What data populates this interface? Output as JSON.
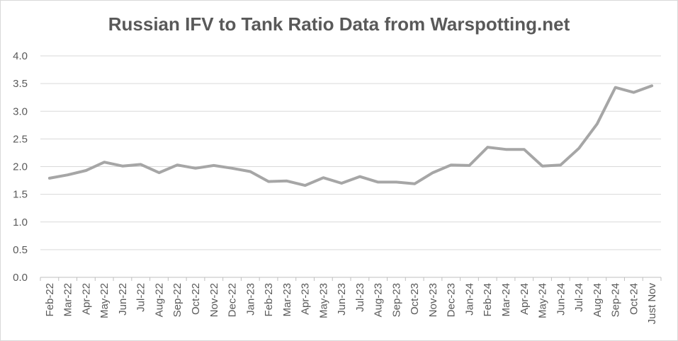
{
  "chart_data": {
    "type": "line",
    "title": "Russian IFV to Tank Ratio Data from Warspotting.net",
    "xlabel": "",
    "ylabel": "",
    "ylim": [
      0,
      4
    ],
    "yticks": [
      "0.0",
      "0.5",
      "1.0",
      "1.5",
      "2.0",
      "2.5",
      "3.0",
      "3.5",
      "4.0"
    ],
    "grid": "horizontal",
    "legend": "none",
    "series_color": "#a6a6a6",
    "categories": [
      "Feb-22",
      "Mar-22",
      "Apr-22",
      "May-22",
      "Jun-22",
      "Jul-22",
      "Aug-22",
      "Sep-22",
      "Oct-22",
      "Nov-22",
      "Dec-22",
      "Jan-23",
      "Feb-23",
      "Mar-23",
      "Apr-23",
      "May-23",
      "Jun-23",
      "Jul-23",
      "Aug-23",
      "Sep-23",
      "Oct-23",
      "Nov-23",
      "Dec-23",
      "Jan-24",
      "Feb-24",
      "Mar-24",
      "Apr-24",
      "May-24",
      "Jun-24",
      "Jul-24",
      "Aug-24",
      "Sep-24",
      "Oct-24",
      "Just Nov"
    ],
    "values": [
      1.79,
      1.85,
      1.93,
      2.08,
      2.01,
      2.04,
      1.89,
      2.03,
      1.97,
      2.02,
      1.97,
      1.91,
      1.73,
      1.74,
      1.66,
      1.8,
      1.7,
      1.82,
      1.72,
      1.72,
      1.69,
      1.89,
      2.03,
      2.02,
      2.35,
      2.31,
      2.31,
      2.01,
      2.03,
      2.33,
      2.77,
      3.43,
      3.34,
      3.46
    ]
  }
}
